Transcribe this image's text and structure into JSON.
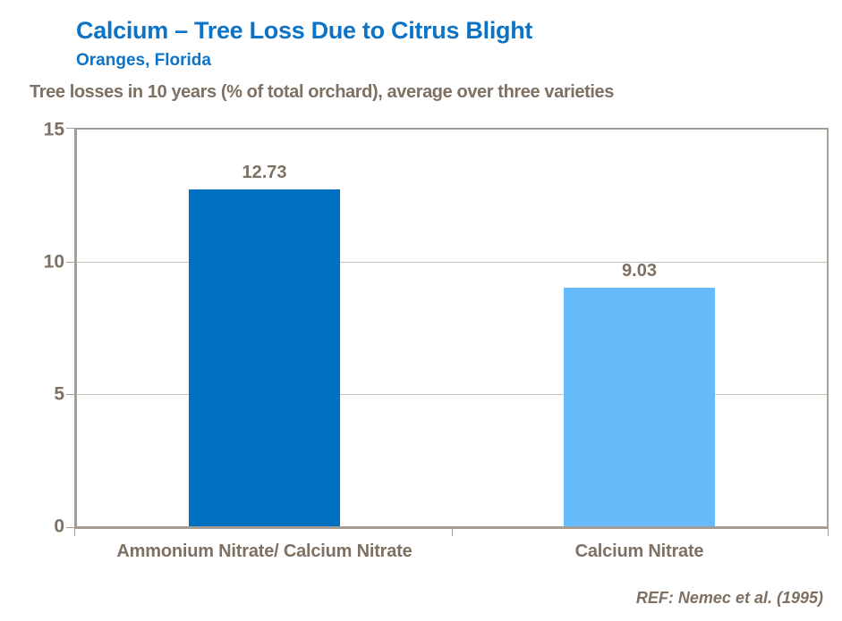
{
  "header": {
    "title": "Calcium – Tree Loss Due to Citrus Blight",
    "subtitle": "Oranges, Florida"
  },
  "chart_data": {
    "type": "bar",
    "title": "Tree losses in 10 years (% of total orchard), average over three varieties",
    "categories": [
      "Ammonium Nitrate/ Calcium Nitrate",
      "Calcium Nitrate"
    ],
    "values": [
      12.73,
      9.03
    ],
    "value_labels": [
      "12.73",
      "9.03"
    ],
    "ylabel": "",
    "xlabel": "",
    "ylim": [
      0,
      15
    ],
    "yticks": [
      "15",
      "10",
      "5",
      "0"
    ],
    "grid": "horizontal",
    "legend": "none",
    "bar_colors": [
      "#0070c0",
      "#66bcfa"
    ]
  },
  "footer": {
    "reference": "REF: Nemec et al. (1995)"
  },
  "colors": {
    "title_blue": "#0d73c6",
    "text_brown": "#7e7062",
    "axis": "#a59c93",
    "gridline": "#c9c1b8",
    "bar_dark_blue": "#0070c0",
    "bar_light_blue": "#66bcfa"
  }
}
